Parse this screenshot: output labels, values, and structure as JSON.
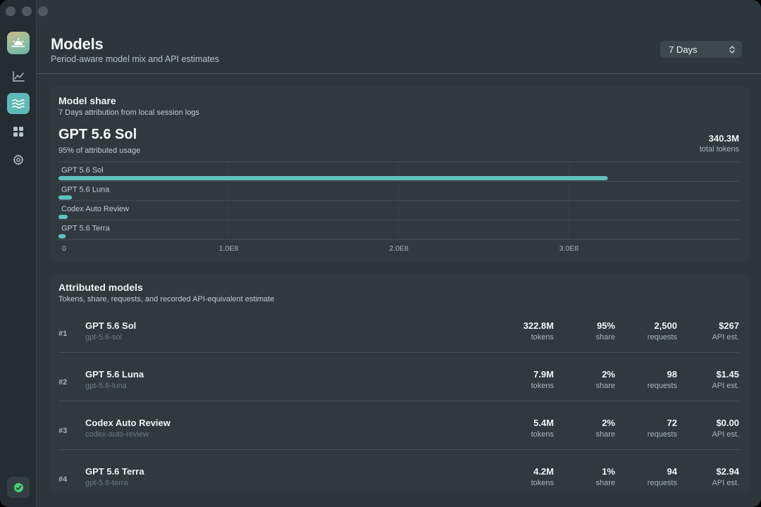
{
  "header": {
    "title": "Models",
    "subtitle": "Period-aware model mix and API estimates",
    "period": "7 Days"
  },
  "sidebar": {
    "items": [
      {
        "icon": "chart-line-icon",
        "active": false
      },
      {
        "icon": "waves-icon",
        "active": true
      },
      {
        "icon": "grid-icon",
        "active": false
      },
      {
        "icon": "gear-icon",
        "active": false
      }
    ],
    "status_icon": "check-circle-icon"
  },
  "share_card": {
    "title": "Model share",
    "subtitle": "7 Days attribution from local session logs",
    "top_model": "GPT 5.6 Sol",
    "top_share": "95% of attributed usage",
    "total_value": "340.3M",
    "total_label": "total tokens"
  },
  "chart_data": {
    "type": "bar",
    "orientation": "horizontal",
    "categories": [
      "GPT 5.6 Sol",
      "GPT 5.6 Luna",
      "Codex Auto Review",
      "GPT 5.6 Terra"
    ],
    "values": [
      322800000,
      7900000,
      5400000,
      4200000
    ],
    "xticks": [
      0,
      100000000,
      200000000,
      300000000
    ],
    "xtick_labels": [
      "0",
      "1.0E8",
      "2.0E8",
      "3.0E8"
    ],
    "xlim": [
      0,
      400000000
    ],
    "grid": true,
    "bar_color": "#5fc2c0"
  },
  "models_card": {
    "title": "Attributed models",
    "subtitle": "Tokens, share, requests, and recorded API-equivalent estimate",
    "labels": {
      "tokens": "tokens",
      "share": "share",
      "requests": "requests",
      "api": "API est."
    },
    "rows": [
      {
        "rank": "#1",
        "name": "GPT 5.6 Sol",
        "id": "gpt-5.6-sol",
        "tokens": "322.8M",
        "share": "95%",
        "requests": "2,500",
        "api": "$267"
      },
      {
        "rank": "#2",
        "name": "GPT 5.6 Luna",
        "id": "gpt-5.6-luna",
        "tokens": "7.9M",
        "share": "2%",
        "requests": "98",
        "api": "$1.45"
      },
      {
        "rank": "#3",
        "name": "Codex Auto Review",
        "id": "codex-auto-review",
        "tokens": "5.4M",
        "share": "2%",
        "requests": "72",
        "api": "$0.00"
      },
      {
        "rank": "#4",
        "name": "GPT 5.6 Terra",
        "id": "gpt-5.6-terra",
        "tokens": "4.2M",
        "share": "1%",
        "requests": "94",
        "api": "$2.94"
      }
    ]
  },
  "colors": {
    "accent": "#5fc2c0",
    "status_ok": "#4fc977"
  }
}
